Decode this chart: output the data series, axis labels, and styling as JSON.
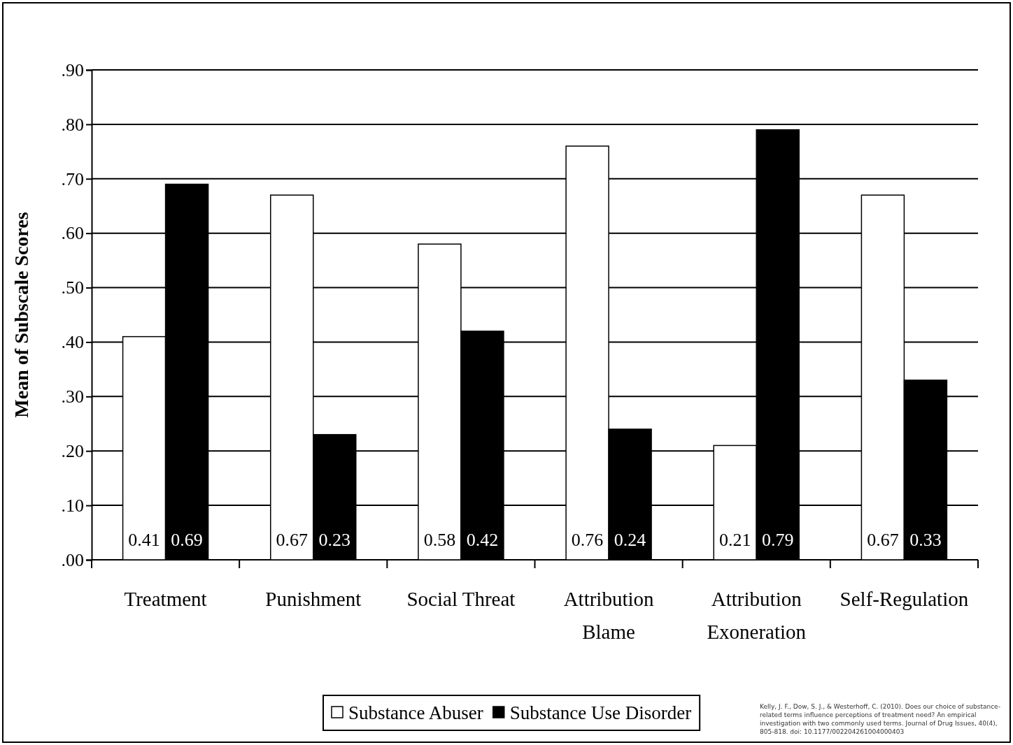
{
  "chart_data": {
    "type": "bar",
    "ylabel": "Mean of Subscale Scores",
    "categories": [
      "Treatment",
      "Punishment",
      "Social Threat",
      "Attribution Blame",
      "Attribution Exoneration",
      "Self-Regulation"
    ],
    "series": [
      {
        "name": "Substance Abuser",
        "color": "#ffffff",
        "values": [
          0.41,
          0.67,
          0.58,
          0.76,
          0.21,
          0.67
        ]
      },
      {
        "name": "Substance Use Disorder",
        "color": "#000000",
        "values": [
          0.69,
          0.23,
          0.42,
          0.24,
          0.79,
          0.33
        ]
      }
    ],
    "ylim": [
      0,
      0.9
    ],
    "yticks": [
      {
        "value": 0,
        "label": ".00"
      },
      {
        "value": 0.1,
        "label": ".10"
      },
      {
        "value": 0.2,
        "label": ".20"
      },
      {
        "value": 0.3,
        "label": ".30"
      },
      {
        "value": 0.4,
        "label": ".40"
      },
      {
        "value": 0.5,
        "label": ".50"
      },
      {
        "value": 0.6,
        "label": ".60"
      },
      {
        "value": 0.7,
        "label": ".70"
      },
      {
        "value": 0.8,
        "label": ".80"
      },
      {
        "value": 0.9,
        "label": ".90"
      }
    ],
    "grid": "y",
    "data_labels": true,
    "legend": "bottom",
    "annotations": [
      "Kelly, J. F., Dow, S. J., & Westerhoff, C. (2010). Does our choice of substance-related terms influence perceptions of treatment need? An empirical investigation with two commonly used terms. Journal of Drug Issues, 40(4), 805-818. doi: 10.1177/002204261004000403"
    ]
  }
}
